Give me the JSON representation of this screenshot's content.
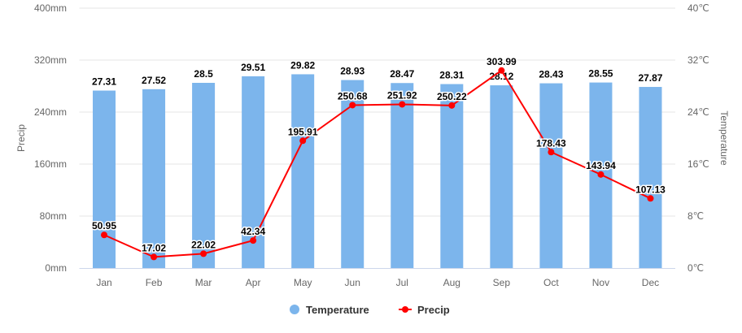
{
  "chart_data": {
    "type": "bar+line",
    "categories": [
      "Jan",
      "Feb",
      "Mar",
      "Apr",
      "May",
      "Jun",
      "Jul",
      "Aug",
      "Sep",
      "Oct",
      "Nov",
      "Dec"
    ],
    "series": [
      {
        "name": "Temperature",
        "type": "bar",
        "axis": "right",
        "color": "#7cb5ec",
        "values": [
          27.31,
          27.52,
          28.5,
          29.51,
          29.82,
          28.93,
          28.47,
          28.31,
          28.12,
          28.43,
          28.55,
          27.87
        ]
      },
      {
        "name": "Precip",
        "type": "line",
        "axis": "left",
        "color": "#ff0000",
        "values": [
          50.95,
          17.02,
          22.02,
          42.34,
          195.91,
          250.68,
          251.92,
          250.22,
          303.99,
          178.43,
          143.94,
          107.13
        ]
      }
    ],
    "left_axis": {
      "label": "Precip",
      "ylim": [
        0,
        400
      ],
      "ticks": [
        "0mm",
        "80mm",
        "160mm",
        "240mm",
        "320mm",
        "400mm"
      ]
    },
    "right_axis": {
      "label": "Temperature",
      "ylim": [
        0,
        40
      ],
      "ticks": [
        "0℃",
        "8℃",
        "16℃",
        "24℃",
        "32℃",
        "40℃"
      ]
    },
    "grid": true,
    "legend": "bottom-center"
  }
}
